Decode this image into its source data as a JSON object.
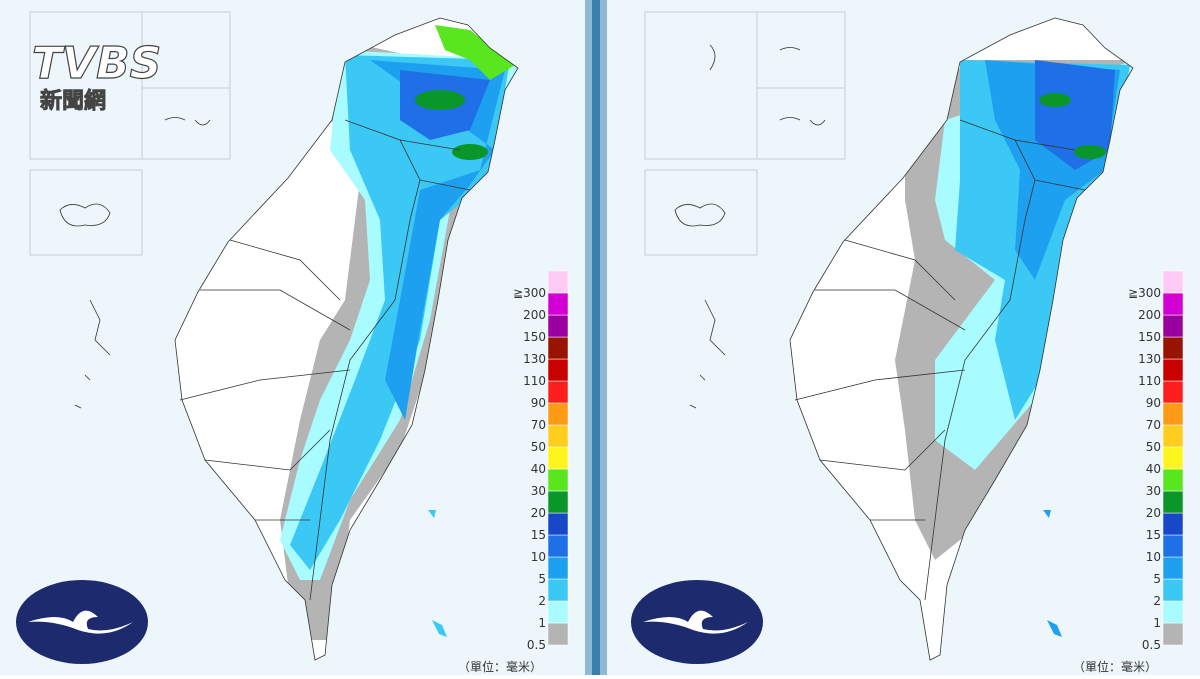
{
  "logo": {
    "brand": "TVBS",
    "subtitle": "新聞網"
  },
  "legend": {
    "levels": [
      {
        "label": "0.5",
        "color": "#b4b4b4"
      },
      {
        "label": "1",
        "color": "#a8fcff"
      },
      {
        "label": "2",
        "color": "#3cc8f5"
      },
      {
        "label": "5",
        "color": "#1ea0f0"
      },
      {
        "label": "10",
        "color": "#1f6fe6"
      },
      {
        "label": "15",
        "color": "#1848c8"
      },
      {
        "label": "20",
        "color": "#0a9628"
      },
      {
        "label": "30",
        "color": "#5ae61e"
      },
      {
        "label": "40",
        "color": "#fff51e"
      },
      {
        "label": "50",
        "color": "#ffcd1e"
      },
      {
        "label": "70",
        "color": "#ff9a14"
      },
      {
        "label": "90",
        "color": "#ff1e1e"
      },
      {
        "label": "110",
        "color": "#c80000"
      },
      {
        "label": "130",
        "color": "#961400"
      },
      {
        "label": "150",
        "color": "#9a00a0"
      },
      {
        "label": "200",
        "color": "#d200d2"
      },
      {
        "label": "≧300",
        "color": "#ffcbf5"
      }
    ],
    "unit": "（單位：毫米）"
  }
}
